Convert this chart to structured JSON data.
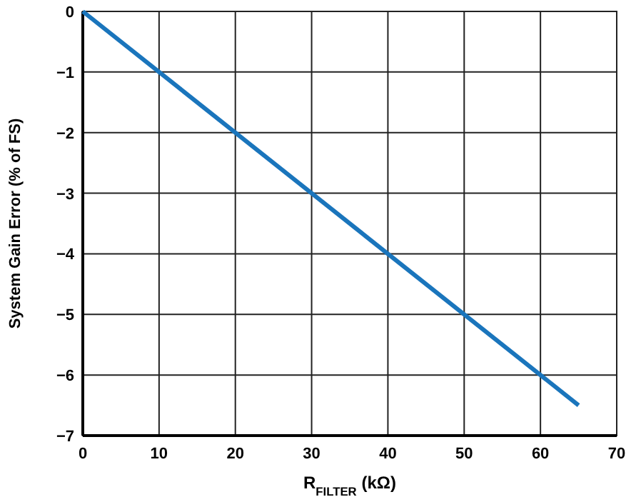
{
  "chart_data": {
    "type": "line",
    "xlabel": "R$_{FILTER}$ (kΩ)",
    "ylabel": "System Gain Error (% of FS)",
    "x": [
      0,
      65
    ],
    "series": [
      {
        "color": "#1a75bc",
        "values": [
          0,
          -6.5
        ]
      }
    ],
    "xlim": [
      0,
      70
    ],
    "xticks": [
      0,
      10,
      20,
      30,
      40,
      50,
      60,
      70
    ],
    "ylim": [
      -7,
      0
    ],
    "yticks": [
      0,
      -1,
      -2,
      -3,
      -4,
      -5,
      -6,
      -7
    ],
    "grid": true,
    "marker": "none",
    "line_style": "solid"
  }
}
